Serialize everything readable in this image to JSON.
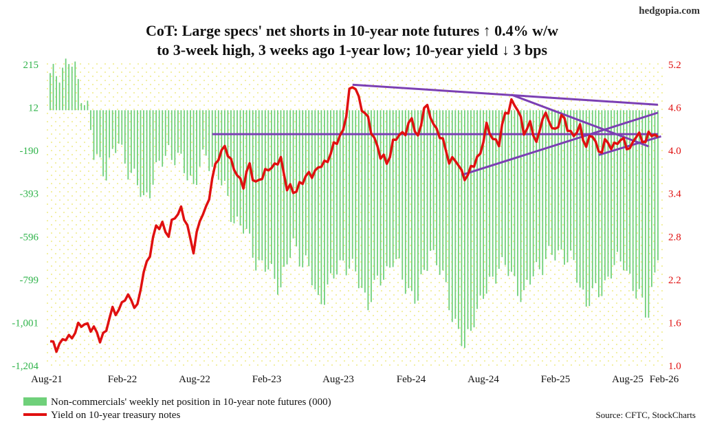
{
  "brand": "hedgopia.com",
  "source": "Source: CFTC, StockCharts",
  "chart_data": {
    "type": "bar+line",
    "title_lines": [
      "CoT: Large specs' net shorts in 10-year note futures ↑ 0.4% w/w",
      "to 3-week high, 3 weeks ago 1-year low; 10-year yield ↓ 3 bps"
    ],
    "x_ticks": [
      "Aug-21",
      "Feb-22",
      "Aug-22",
      "Feb-23",
      "Aug-23",
      "Feb-24",
      "Aug-24",
      "Feb-25",
      "Aug-25",
      "Feb-26"
    ],
    "y_left": {
      "ticks": [
        "215",
        "12",
        "-190",
        "-393",
        "-596",
        "-799",
        "-1,001",
        "-1,204"
      ],
      "min": -1204,
      "max": 215
    },
    "y_right": {
      "ticks": [
        "5.2",
        "4.6",
        "4.0",
        "3.4",
        "2.8",
        "2.2",
        "1.6",
        "1.0"
      ],
      "min": 1.0,
      "max": 5.2
    },
    "colors": {
      "bars": "#6fd07a",
      "line": "#e01010",
      "trend": "#7b3fb3",
      "background_dots": "#f2ee9a"
    },
    "series": [
      {
        "name": "Non-commercials' weekly net position in 10-year note futures (000)",
        "axis": "left",
        "anchor_points": [
          [
            0,
            150
          ],
          [
            3,
            190
          ],
          [
            6,
            230
          ],
          [
            8,
            180
          ],
          [
            12,
            10
          ],
          [
            14,
            -220
          ],
          [
            18,
            -280
          ],
          [
            22,
            -160
          ],
          [
            26,
            -300
          ],
          [
            30,
            -420
          ],
          [
            34,
            -300
          ],
          [
            38,
            -180
          ],
          [
            42,
            -260
          ],
          [
            46,
            -340
          ],
          [
            50,
            -220
          ],
          [
            54,
            -300
          ],
          [
            58,
            -480
          ],
          [
            62,
            -560
          ],
          [
            66,
            -700
          ],
          [
            70,
            -760
          ],
          [
            74,
            -820
          ],
          [
            78,
            -640
          ],
          [
            82,
            -720
          ],
          [
            86,
            -900
          ],
          [
            90,
            -820
          ],
          [
            94,
            -700
          ],
          [
            98,
            -780
          ],
          [
            102,
            -900
          ],
          [
            106,
            -800
          ],
          [
            110,
            -700
          ],
          [
            114,
            -820
          ],
          [
            118,
            -900
          ],
          [
            122,
            -640
          ],
          [
            126,
            -800
          ],
          [
            130,
            -1000
          ],
          [
            133,
            -1140
          ],
          [
            136,
            -960
          ],
          [
            140,
            -860
          ],
          [
            144,
            -720
          ],
          [
            148,
            -780
          ],
          [
            152,
            -880
          ],
          [
            156,
            -740
          ],
          [
            160,
            -700
          ],
          [
            164,
            -660
          ],
          [
            168,
            -740
          ],
          [
            172,
            -900
          ],
          [
            176,
            -860
          ],
          [
            180,
            -760
          ],
          [
            184,
            -700
          ],
          [
            188,
            -880
          ],
          [
            192,
            -940
          ],
          [
            195,
            -690
          ]
        ]
      },
      {
        "name": "Yield on 10-year treasury notes",
        "axis": "right",
        "anchor_points": [
          [
            0,
            1.3
          ],
          [
            2,
            1.28
          ],
          [
            4,
            1.34
          ],
          [
            6,
            1.38
          ],
          [
            8,
            1.5
          ],
          [
            10,
            1.55
          ],
          [
            12,
            1.6
          ],
          [
            14,
            1.48
          ],
          [
            16,
            1.38
          ],
          [
            18,
            1.52
          ],
          [
            20,
            1.75
          ],
          [
            22,
            1.8
          ],
          [
            24,
            1.92
          ],
          [
            26,
            1.95
          ],
          [
            28,
            1.8
          ],
          [
            30,
            2.3
          ],
          [
            32,
            2.6
          ],
          [
            34,
            2.9
          ],
          [
            36,
            3.0
          ],
          [
            38,
            2.8
          ],
          [
            40,
            3.1
          ],
          [
            42,
            3.2
          ],
          [
            44,
            2.9
          ],
          [
            46,
            2.65
          ],
          [
            48,
            3.0
          ],
          [
            50,
            3.2
          ],
          [
            52,
            3.6
          ],
          [
            54,
            3.9
          ],
          [
            56,
            4.1
          ],
          [
            58,
            3.8
          ],
          [
            60,
            3.7
          ],
          [
            62,
            3.5
          ],
          [
            64,
            3.8
          ],
          [
            66,
            3.55
          ],
          [
            68,
            3.6
          ],
          [
            70,
            3.8
          ],
          [
            72,
            3.75
          ],
          [
            74,
            3.9
          ],
          [
            76,
            3.5
          ],
          [
            78,
            3.4
          ],
          [
            80,
            3.55
          ],
          [
            82,
            3.6
          ],
          [
            84,
            3.7
          ],
          [
            86,
            3.75
          ],
          [
            88,
            3.8
          ],
          [
            90,
            4.0
          ],
          [
            92,
            4.1
          ],
          [
            94,
            4.3
          ],
          [
            96,
            4.8
          ],
          [
            98,
            4.9
          ],
          [
            100,
            4.6
          ],
          [
            102,
            4.4
          ],
          [
            104,
            4.2
          ],
          [
            106,
            3.9
          ],
          [
            108,
            3.85
          ],
          [
            110,
            4.1
          ],
          [
            112,
            4.2
          ],
          [
            114,
            4.3
          ],
          [
            116,
            4.4
          ],
          [
            118,
            4.2
          ],
          [
            120,
            4.6
          ],
          [
            122,
            4.5
          ],
          [
            124,
            4.3
          ],
          [
            126,
            4.1
          ],
          [
            128,
            3.9
          ],
          [
            130,
            3.85
          ],
          [
            132,
            3.7
          ],
          [
            134,
            3.65
          ],
          [
            136,
            3.8
          ],
          [
            138,
            4.0
          ],
          [
            140,
            4.3
          ],
          [
            142,
            4.2
          ],
          [
            144,
            4.1
          ],
          [
            146,
            4.5
          ],
          [
            148,
            4.7
          ],
          [
            150,
            4.55
          ],
          [
            152,
            4.3
          ],
          [
            154,
            4.35
          ],
          [
            156,
            4.1
          ],
          [
            158,
            4.5
          ],
          [
            160,
            4.4
          ],
          [
            162,
            4.3
          ],
          [
            164,
            4.45
          ],
          [
            166,
            4.35
          ],
          [
            168,
            4.2
          ],
          [
            170,
            4.3
          ],
          [
            172,
            4.1
          ],
          [
            174,
            4.2
          ],
          [
            176,
            4.0
          ],
          [
            178,
            4.1
          ],
          [
            180,
            4.05
          ],
          [
            182,
            4.15
          ],
          [
            184,
            4.1
          ],
          [
            186,
            4.05
          ],
          [
            188,
            4.2
          ],
          [
            190,
            4.15
          ],
          [
            192,
            4.22
          ],
          [
            195,
            4.18
          ]
        ]
      }
    ],
    "trend_lines_right_axis": [
      [
        [
          97,
          4.92
        ],
        [
          195,
          4.64
        ]
      ],
      [
        [
          52,
          4.23
        ],
        [
          195,
          4.23
        ]
      ],
      [
        [
          132,
          3.66
        ],
        [
          195,
          4.53
        ]
      ],
      [
        [
          148,
          4.78
        ],
        [
          192,
          4.06
        ]
      ],
      [
        [
          176,
          3.94
        ],
        [
          196,
          4.2
        ]
      ]
    ],
    "legend": [
      {
        "label": "Non-commercials' weekly net position in 10-year note futures (000)",
        "kind": "bar"
      },
      {
        "label": "Yield on 10-year treasury notes",
        "kind": "line"
      }
    ]
  }
}
